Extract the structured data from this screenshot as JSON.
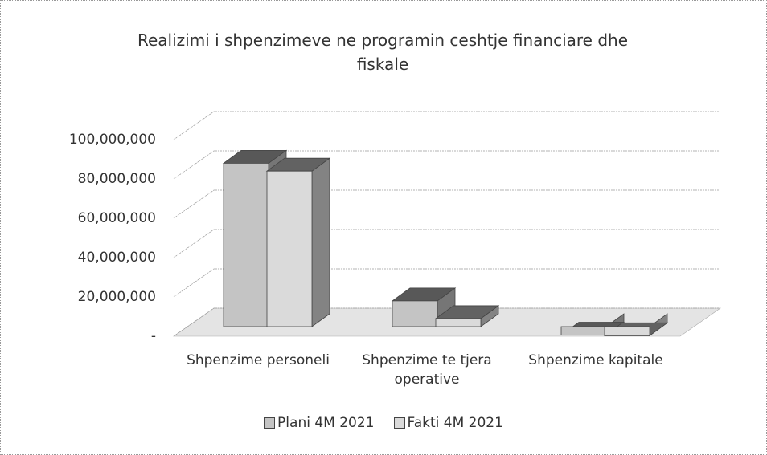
{
  "chart_data": {
    "type": "bar3d",
    "title": "Realizimi i shpenzimeve ne programin ceshtje financiare dhe fiskale",
    "categories": [
      "Shpenzime personeli",
      "Shpenzime te tjera operative",
      "Shpenzime kapitale"
    ],
    "series": [
      {
        "name": "Plani 4M 2021",
        "color": "#c4c4c4",
        "values": [
          88000000,
          18000000,
          600000
        ]
      },
      {
        "name": "Fakti 4M 2021",
        "color": "#dadada",
        "values": [
          84000000,
          9000000,
          300000
        ]
      }
    ],
    "ylim": [
      0,
      100000000
    ],
    "yticks": [
      {
        "value": 0,
        "label": "-"
      },
      {
        "value": 20000000,
        "label": "20,000,000"
      },
      {
        "value": 40000000,
        "label": "40,000,000"
      },
      {
        "value": 60000000,
        "label": "60,000,000"
      },
      {
        "value": 80000000,
        "label": "80,000,000"
      },
      {
        "value": 100000000,
        "label": "100,000,000"
      }
    ],
    "grid": true,
    "legend": "bottom"
  }
}
